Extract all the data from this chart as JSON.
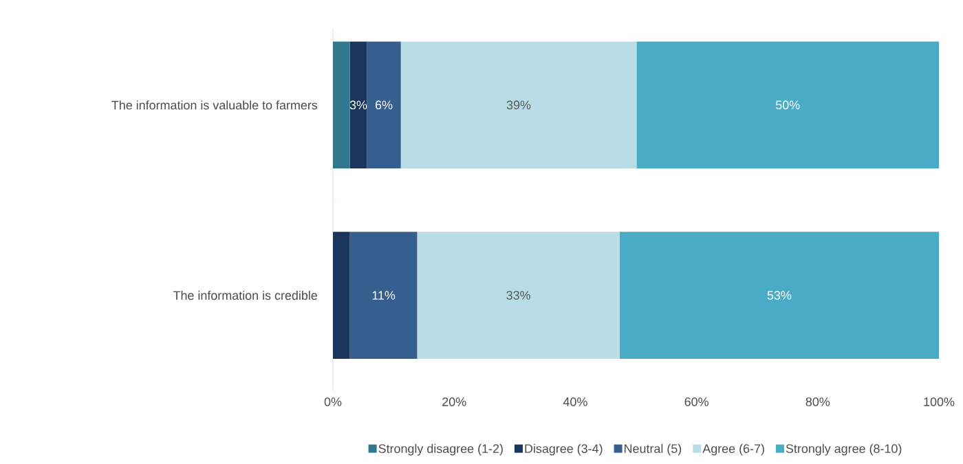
{
  "chart_data": {
    "type": "bar",
    "orientation": "horizontal",
    "stacked": true,
    "categories": [
      "The information is valuable to farmers",
      "The information is credible"
    ],
    "series": [
      {
        "name": "Strongly disagree (1-2)",
        "color": "#31788f",
        "values": [
          2.8,
          0
        ],
        "value_labels": [
          null,
          null
        ]
      },
      {
        "name": "Disagree (3-4)",
        "color": "#1a355b",
        "values": [
          2.8,
          2.8
        ],
        "value_labels": [
          "3%",
          null
        ]
      },
      {
        "name": "Neutral (5)",
        "color": "#365f8f",
        "values": [
          5.6,
          11.1
        ],
        "value_labels": [
          "6%",
          "11%"
        ]
      },
      {
        "name": "Agree (6-7)",
        "color": "#b8dde7",
        "values": [
          38.9,
          33.4
        ],
        "value_labels": [
          "39%",
          "33%"
        ]
      },
      {
        "name": "Strongly agree (8-10)",
        "color": "#4aabc6",
        "values": [
          49.9,
          52.7
        ],
        "value_labels": [
          "50%",
          "53%"
        ]
      }
    ],
    "xlim": [
      0,
      100
    ],
    "xticks": [
      {
        "value": 0,
        "label": "0%"
      },
      {
        "value": 20,
        "label": "20%"
      },
      {
        "value": 40,
        "label": "40%"
      },
      {
        "value": 60,
        "label": "60%"
      },
      {
        "value": 80,
        "label": "80%"
      },
      {
        "value": 100,
        "label": "100%"
      }
    ],
    "grid": false,
    "legend": "bottom"
  }
}
